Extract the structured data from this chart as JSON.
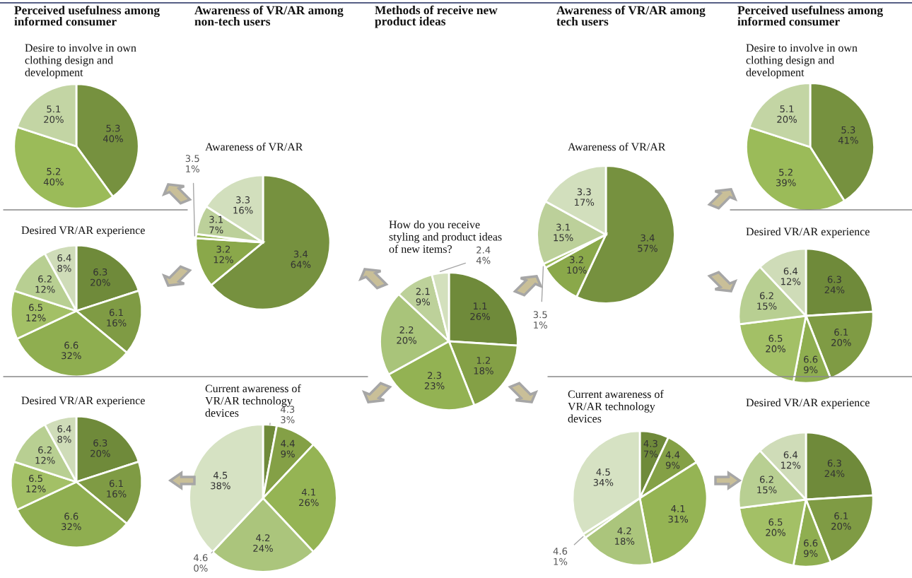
{
  "chart_data": [
    {
      "type": "other",
      "annotations": [
        "Perceived usefulness among\ninformed consumer",
        "Awareness of VR/AR among\nnon-tech users",
        "Methods of receive new\nproduct ideas",
        "Awareness of VR/AR among\ntech users",
        "Perceived usefulness among\ninformed consumer"
      ]
    },
    {
      "type": "pie",
      "title": "Desire to involve in own\nclothing design and\ndevelopment",
      "categories": [
        "5.3",
        "5.2",
        "5.1"
      ],
      "values": [
        40,
        40,
        20
      ],
      "value_labels": [
        "40%",
        "40%",
        "20%"
      ],
      "colors": [
        "#76913f",
        "#9bbb59",
        "#c3d5a4"
      ]
    },
    {
      "type": "pie",
      "title": "Desired VR/AR experience",
      "categories": [
        "6.3",
        "6.1",
        "6.6",
        "6.5",
        "6.2",
        "6.4"
      ],
      "values": [
        20,
        16,
        32,
        12,
        12,
        8
      ],
      "value_labels": [
        "20%",
        "16%",
        "32%",
        "12%",
        "12%",
        "8%"
      ],
      "colors": [
        "#6f8a3a",
        "#7f9b44",
        "#8fae50",
        "#a3c066",
        "#b8cf92",
        "#cfdcb8"
      ]
    },
    {
      "type": "pie",
      "title": "Desired VR/AR experience",
      "categories": [
        "6.3",
        "6.1",
        "6.6",
        "6.5",
        "6.2",
        "6.4"
      ],
      "values": [
        20,
        16,
        32,
        12,
        12,
        8
      ],
      "value_labels": [
        "20%",
        "16%",
        "32%",
        "12%",
        "12%",
        "8%"
      ],
      "colors": [
        "#6f8a3a",
        "#7f9b44",
        "#8fae50",
        "#a3c066",
        "#b8cf92",
        "#cfdcb8"
      ]
    },
    {
      "type": "pie",
      "title": "Awareness of VR/AR",
      "categories": [
        "3.4",
        "3.2",
        "3.5",
        "3.1",
        "3.3"
      ],
      "values": [
        64,
        12,
        1,
        7,
        16
      ],
      "value_labels": [
        "64%",
        "12%",
        "1%",
        "7%",
        "16%"
      ],
      "colors": [
        "#76913f",
        "#8aa84a",
        "#9bbb59",
        "#bcd09a",
        "#d2dfbd"
      ]
    },
    {
      "type": "pie",
      "title": "How do you receive\nstyling and product ideas\nof new items?",
      "categories": [
        "1.1",
        "1.2",
        "2.3",
        "2.2",
        "2.1",
        "2.4"
      ],
      "values": [
        26,
        18,
        23,
        20,
        9,
        4
      ],
      "value_labels": [
        "26%",
        "18%",
        "23%",
        "20%",
        "9%",
        "4%"
      ],
      "colors": [
        "#6f8a3a",
        "#84a046",
        "#93b253",
        "#a9c47a",
        "#bdd19a",
        "#d3e0bd"
      ]
    },
    {
      "type": "pie",
      "title": "Current awareness of\nVR/AR technology\ndevices",
      "categories": [
        "4.3",
        "4.4",
        "4.1",
        "4.2",
        "4.6",
        "4.5"
      ],
      "values": [
        3,
        9,
        26,
        24,
        0,
        38
      ],
      "value_labels": [
        "3%",
        "9%",
        "26%",
        "24%",
        "0%",
        "38%"
      ],
      "colors": [
        "#6f8a3a",
        "#84a046",
        "#95b454",
        "#abc57c",
        "#c2d5a2",
        "#d6e2c3"
      ]
    },
    {
      "type": "pie",
      "title": "Awareness of VR/AR",
      "categories": [
        "3.4",
        "3.2",
        "3.5",
        "3.1",
        "3.3"
      ],
      "values": [
        57,
        10,
        1,
        15,
        17
      ],
      "value_labels": [
        "57%",
        "10%",
        "1%",
        "15%",
        "17%"
      ],
      "colors": [
        "#76913f",
        "#8aa84a",
        "#9bbb59",
        "#bcd09a",
        "#d2dfbd"
      ]
    },
    {
      "type": "pie",
      "title": "Desire to involve in own\nclothing design and\ndevelopment",
      "categories": [
        "5.3",
        "5.2",
        "5.1"
      ],
      "values": [
        41,
        39,
        20
      ],
      "value_labels": [
        "41%",
        "39%",
        "20%"
      ],
      "colors": [
        "#76913f",
        "#9bbb59",
        "#c3d5a4"
      ]
    },
    {
      "type": "pie",
      "title": "Desired VR/AR experience",
      "categories": [
        "6.3",
        "6.1",
        "6.6",
        "6.5",
        "6.2",
        "6.4"
      ],
      "values": [
        24,
        20,
        9,
        20,
        15,
        12
      ],
      "value_labels": [
        "24%",
        "20%",
        "9%",
        "20%",
        "15%",
        "12%"
      ],
      "colors": [
        "#6f8a3a",
        "#7f9b44",
        "#8fae50",
        "#a3c066",
        "#b8cf92",
        "#cfdcb8"
      ]
    },
    {
      "type": "pie",
      "title": "Current awareness of\nVR/AR technology\ndevices",
      "categories": [
        "4.3",
        "4.4",
        "4.1",
        "4.2",
        "4.6",
        "4.5"
      ],
      "values": [
        7,
        9,
        31,
        18,
        1,
        34
      ],
      "value_labels": [
        "7%",
        "9%",
        "31%",
        "18%",
        "1%",
        "34%"
      ],
      "colors": [
        "#6f8a3a",
        "#84a046",
        "#95b454",
        "#abc57c",
        "#c2d5a2",
        "#d6e2c3"
      ]
    },
    {
      "type": "pie",
      "title": "Desired VR/AR experience",
      "categories": [
        "6.3",
        "6.1",
        "6.6",
        "6.5",
        "6.2",
        "6.4"
      ],
      "values": [
        24,
        20,
        9,
        20,
        15,
        12
      ],
      "value_labels": [
        "24%",
        "20%",
        "9%",
        "20%",
        "15%",
        "12%"
      ],
      "colors": [
        "#6f8a3a",
        "#7f9b44",
        "#8fae50",
        "#a3c066",
        "#b8cf92",
        "#cfdcb8"
      ]
    }
  ]
}
